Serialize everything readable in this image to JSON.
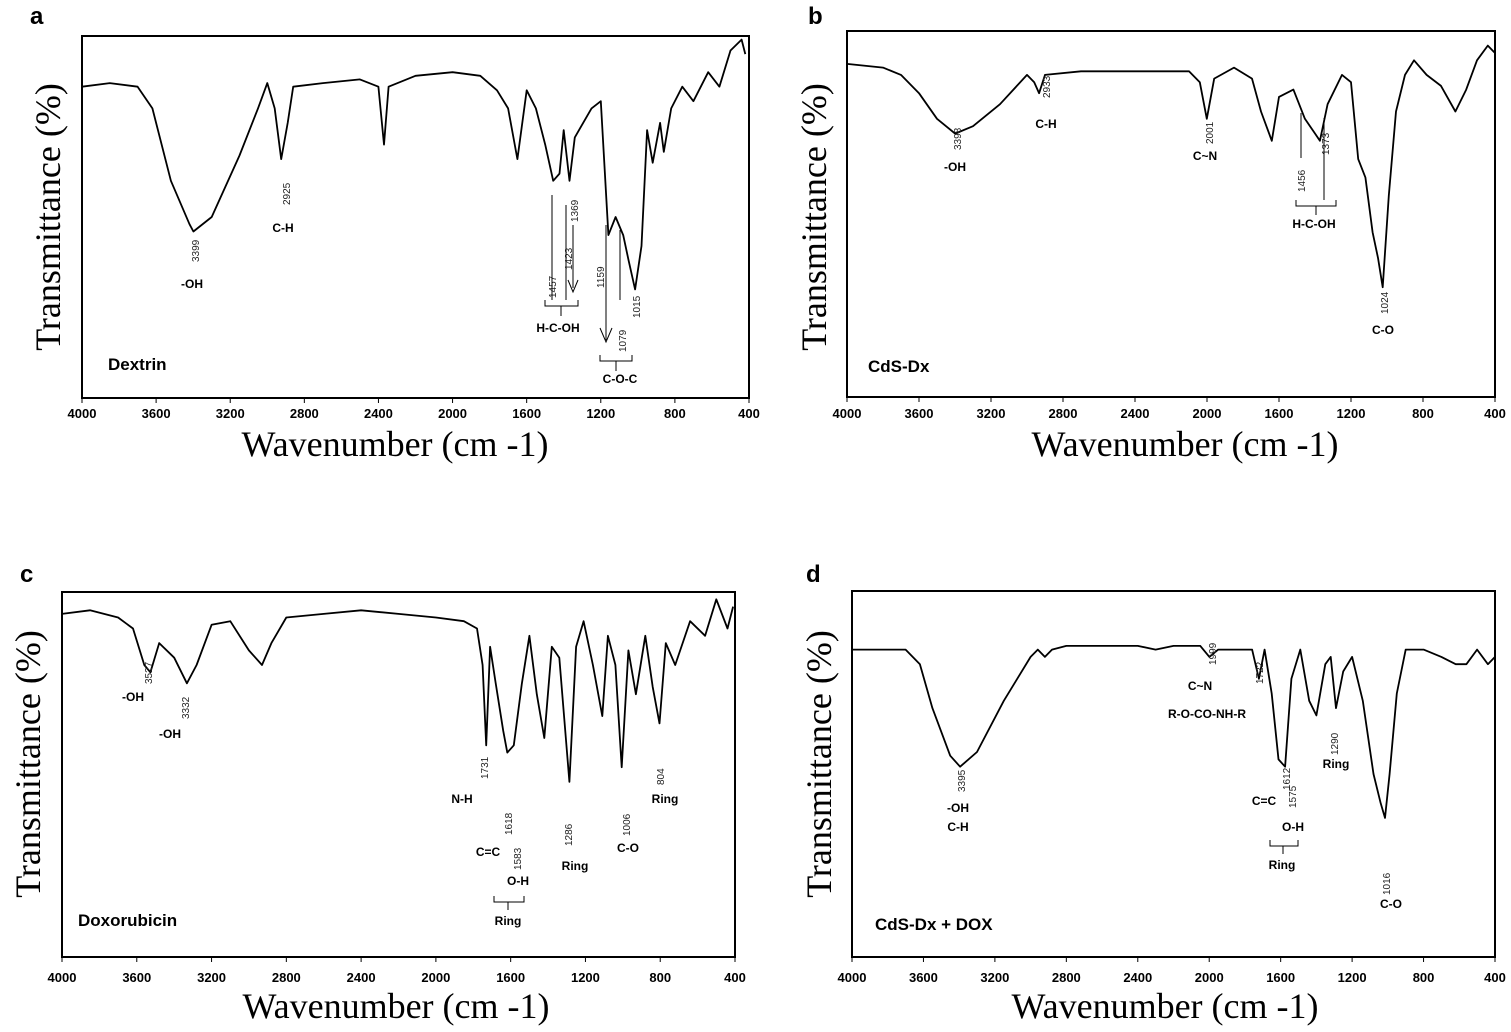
{
  "chart_data": [
    {
      "type": "line",
      "panel": "a",
      "sample_label": "Dextrin",
      "xlabel": "Wavenumber (cm -1)",
      "ylabel": "Transmittance (%)",
      "xlim": [
        4000,
        400
      ],
      "x_ticks": [
        "4000",
        "3600",
        "3200",
        "2800",
        "2400",
        "2000",
        "1600",
        "1200",
        "800",
        "400"
      ],
      "ylim": [
        0,
        1
      ],
      "points": [
        [
          4000,
          0.86
        ],
        [
          3850,
          0.87
        ],
        [
          3700,
          0.86
        ],
        [
          3620,
          0.8
        ],
        [
          3520,
          0.6
        ],
        [
          3420,
          0.48
        ],
        [
          3399,
          0.46
        ],
        [
          3300,
          0.5
        ],
        [
          3150,
          0.67
        ],
        [
          3050,
          0.8
        ],
        [
          3000,
          0.87
        ],
        [
          2960,
          0.8
        ],
        [
          2925,
          0.66
        ],
        [
          2890,
          0.76
        ],
        [
          2860,
          0.86
        ],
        [
          2700,
          0.87
        ],
        [
          2500,
          0.88
        ],
        [
          2400,
          0.86
        ],
        [
          2370,
          0.7
        ],
        [
          2345,
          0.86
        ],
        [
          2200,
          0.89
        ],
        [
          2000,
          0.9
        ],
        [
          1850,
          0.89
        ],
        [
          1760,
          0.85
        ],
        [
          1700,
          0.8
        ],
        [
          1650,
          0.66
        ],
        [
          1600,
          0.85
        ],
        [
          1550,
          0.8
        ],
        [
          1500,
          0.7
        ],
        [
          1457,
          0.6
        ],
        [
          1423,
          0.62
        ],
        [
          1400,
          0.74
        ],
        [
          1369,
          0.6
        ],
        [
          1340,
          0.72
        ],
        [
          1250,
          0.8
        ],
        [
          1200,
          0.82
        ],
        [
          1159,
          0.45
        ],
        [
          1120,
          0.5
        ],
        [
          1079,
          0.45
        ],
        [
          1050,
          0.38
        ],
        [
          1015,
          0.3
        ],
        [
          980,
          0.42
        ],
        [
          950,
          0.74
        ],
        [
          920,
          0.65
        ],
        [
          880,
          0.76
        ],
        [
          860,
          0.68
        ],
        [
          820,
          0.8
        ],
        [
          760,
          0.86
        ],
        [
          700,
          0.82
        ],
        [
          620,
          0.9
        ],
        [
          560,
          0.86
        ],
        [
          500,
          0.96
        ],
        [
          440,
          0.99
        ],
        [
          420,
          0.95
        ]
      ],
      "peaks": [
        {
          "wavenumber": "3399",
          "assignment": "-OH"
        },
        {
          "wavenumber": "2925",
          "assignment": "C-H"
        },
        {
          "wavenumber": "1457",
          "assignment": ""
        },
        {
          "wavenumber": "1423",
          "assignment": ""
        },
        {
          "wavenumber": "1369",
          "assignment": ""
        },
        {
          "wavenumber": "1159",
          "assignment": ""
        },
        {
          "wavenumber": "1079",
          "assignment": ""
        },
        {
          "wavenumber": "1015",
          "assignment": ""
        }
      ],
      "group_labels": [
        "H-C-OH",
        "C-O-C"
      ]
    },
    {
      "type": "line",
      "panel": "b",
      "sample_label": "CdS-Dx",
      "xlabel": "Wavenumber (cm -1)",
      "ylabel": "Transmittance (%)",
      "xlim": [
        4000,
        400
      ],
      "x_ticks": [
        "4000",
        "3600",
        "3200",
        "2800",
        "2400",
        "2000",
        "1600",
        "1200",
        "800",
        "400"
      ],
      "ylim": [
        0,
        1
      ],
      "points": [
        [
          4000,
          0.91
        ],
        [
          3800,
          0.9
        ],
        [
          3700,
          0.88
        ],
        [
          3600,
          0.83
        ],
        [
          3500,
          0.76
        ],
        [
          3400,
          0.72
        ],
        [
          3398,
          0.72
        ],
        [
          3300,
          0.74
        ],
        [
          3150,
          0.8
        ],
        [
          3000,
          0.88
        ],
        [
          2960,
          0.86
        ],
        [
          2933,
          0.83
        ],
        [
          2900,
          0.88
        ],
        [
          2700,
          0.89
        ],
        [
          2500,
          0.89
        ],
        [
          2300,
          0.89
        ],
        [
          2100,
          0.89
        ],
        [
          2040,
          0.86
        ],
        [
          2001,
          0.76
        ],
        [
          1960,
          0.87
        ],
        [
          1850,
          0.9
        ],
        [
          1750,
          0.87
        ],
        [
          1700,
          0.78
        ],
        [
          1640,
          0.7
        ],
        [
          1600,
          0.82
        ],
        [
          1520,
          0.84
        ],
        [
          1456,
          0.76
        ],
        [
          1400,
          0.72
        ],
        [
          1373,
          0.7
        ],
        [
          1330,
          0.8
        ],
        [
          1250,
          0.88
        ],
        [
          1200,
          0.86
        ],
        [
          1160,
          0.65
        ],
        [
          1120,
          0.6
        ],
        [
          1080,
          0.45
        ],
        [
          1050,
          0.38
        ],
        [
          1024,
          0.3
        ],
        [
          990,
          0.55
        ],
        [
          950,
          0.78
        ],
        [
          900,
          0.88
        ],
        [
          850,
          0.92
        ],
        [
          780,
          0.88
        ],
        [
          700,
          0.85
        ],
        [
          620,
          0.78
        ],
        [
          560,
          0.84
        ],
        [
          500,
          0.92
        ],
        [
          440,
          0.96
        ],
        [
          400,
          0.94
        ]
      ],
      "peaks": [
        {
          "wavenumber": "3398",
          "assignment": "-OH"
        },
        {
          "wavenumber": "2933",
          "assignment": "C-H"
        },
        {
          "wavenumber": "2001",
          "assignment": "C~N"
        },
        {
          "wavenumber": "1456",
          "assignment": ""
        },
        {
          "wavenumber": "1373",
          "assignment": ""
        },
        {
          "wavenumber": "1024",
          "assignment": "C-O"
        }
      ],
      "group_labels": [
        "H-C-OH"
      ]
    },
    {
      "type": "line",
      "panel": "c",
      "sample_label": "Doxorubicin",
      "xlabel": "Wavenumber (cm -1)",
      "ylabel": "Transmittance (%)",
      "xlim": [
        4000,
        400
      ],
      "x_ticks": [
        "4000",
        "3600",
        "3200",
        "2800",
        "2400",
        "2000",
        "1600",
        "1200",
        "800",
        "400"
      ],
      "ylim": [
        0,
        1
      ],
      "points": [
        [
          4000,
          0.94
        ],
        [
          3850,
          0.95
        ],
        [
          3700,
          0.93
        ],
        [
          3620,
          0.9
        ],
        [
          3560,
          0.8
        ],
        [
          3527,
          0.78
        ],
        [
          3480,
          0.86
        ],
        [
          3400,
          0.82
        ],
        [
          3332,
          0.75
        ],
        [
          3280,
          0.8
        ],
        [
          3200,
          0.91
        ],
        [
          3100,
          0.92
        ],
        [
          3000,
          0.84
        ],
        [
          2930,
          0.8
        ],
        [
          2880,
          0.86
        ],
        [
          2800,
          0.93
        ],
        [
          2600,
          0.94
        ],
        [
          2400,
          0.95
        ],
        [
          2200,
          0.94
        ],
        [
          2000,
          0.93
        ],
        [
          1850,
          0.92
        ],
        [
          1780,
          0.9
        ],
        [
          1750,
          0.8
        ],
        [
          1731,
          0.58
        ],
        [
          1710,
          0.85
        ],
        [
          1680,
          0.75
        ],
        [
          1640,
          0.62
        ],
        [
          1618,
          0.56
        ],
        [
          1583,
          0.58
        ],
        [
          1540,
          0.75
        ],
        [
          1500,
          0.88
        ],
        [
          1460,
          0.72
        ],
        [
          1420,
          0.6
        ],
        [
          1380,
          0.85
        ],
        [
          1340,
          0.82
        ],
        [
          1286,
          0.48
        ],
        [
          1250,
          0.85
        ],
        [
          1210,
          0.92
        ],
        [
          1160,
          0.8
        ],
        [
          1110,
          0.66
        ],
        [
          1080,
          0.88
        ],
        [
          1040,
          0.8
        ],
        [
          1006,
          0.52
        ],
        [
          970,
          0.84
        ],
        [
          930,
          0.72
        ],
        [
          880,
          0.88
        ],
        [
          840,
          0.74
        ],
        [
          804,
          0.64
        ],
        [
          770,
          0.86
        ],
        [
          720,
          0.8
        ],
        [
          640,
          0.92
        ],
        [
          560,
          0.88
        ],
        [
          500,
          0.98
        ],
        [
          440,
          0.9
        ],
        [
          410,
          0.96
        ]
      ],
      "peaks": [
        {
          "wavenumber": "3527",
          "assignment": "-OH"
        },
        {
          "wavenumber": "3332",
          "assignment": "-OH"
        },
        {
          "wavenumber": "1731",
          "assignment": "N-H"
        },
        {
          "wavenumber": "1618",
          "assignment": "C=C"
        },
        {
          "wavenumber": "1583",
          "assignment": "O-H"
        },
        {
          "wavenumber": "1286",
          "assignment": "Ring"
        },
        {
          "wavenumber": "1006",
          "assignment": "C-O"
        },
        {
          "wavenumber": "804",
          "assignment": "Ring"
        }
      ],
      "group_labels": [
        "Ring"
      ]
    },
    {
      "type": "line",
      "panel": "d",
      "sample_label": "CdS-Dx + DOX",
      "xlabel": "Wavenumber (cm -1)",
      "ylabel": "Transmittance (%)",
      "xlim": [
        4000,
        400
      ],
      "x_ticks": [
        "4000",
        "3600",
        "3200",
        "2800",
        "2400",
        "2000",
        "1600",
        "1200",
        "800",
        "400"
      ],
      "ylim": [
        0,
        1
      ],
      "points": [
        [
          4000,
          0.84
        ],
        [
          3800,
          0.84
        ],
        [
          3700,
          0.84
        ],
        [
          3620,
          0.8
        ],
        [
          3550,
          0.68
        ],
        [
          3450,
          0.55
        ],
        [
          3395,
          0.52
        ],
        [
          3300,
          0.56
        ],
        [
          3150,
          0.7
        ],
        [
          3000,
          0.82
        ],
        [
          2960,
          0.84
        ],
        [
          2920,
          0.82
        ],
        [
          2880,
          0.84
        ],
        [
          2800,
          0.85
        ],
        [
          2600,
          0.85
        ],
        [
          2400,
          0.85
        ],
        [
          2300,
          0.84
        ],
        [
          2200,
          0.85
        ],
        [
          2050,
          0.85
        ],
        [
          1999,
          0.82
        ],
        [
          1950,
          0.84
        ],
        [
          1850,
          0.84
        ],
        [
          1760,
          0.84
        ],
        [
          1722,
          0.76
        ],
        [
          1690,
          0.84
        ],
        [
          1650,
          0.72
        ],
        [
          1612,
          0.54
        ],
        [
          1575,
          0.52
        ],
        [
          1540,
          0.76
        ],
        [
          1490,
          0.84
        ],
        [
          1440,
          0.7
        ],
        [
          1400,
          0.66
        ],
        [
          1350,
          0.8
        ],
        [
          1320,
          0.82
        ],
        [
          1290,
          0.68
        ],
        [
          1250,
          0.78
        ],
        [
          1200,
          0.82
        ],
        [
          1140,
          0.7
        ],
        [
          1080,
          0.5
        ],
        [
          1040,
          0.42
        ],
        [
          1016,
          0.38
        ],
        [
          990,
          0.5
        ],
        [
          950,
          0.72
        ],
        [
          900,
          0.84
        ],
        [
          800,
          0.84
        ],
        [
          700,
          0.82
        ],
        [
          620,
          0.8
        ],
        [
          560,
          0.8
        ],
        [
          500,
          0.84
        ],
        [
          440,
          0.8
        ],
        [
          400,
          0.82
        ]
      ],
      "peaks": [
        {
          "wavenumber": "3395",
          "assignment": "-OH C-H"
        },
        {
          "wavenumber": "1999",
          "assignment": "C~N"
        },
        {
          "wavenumber": "1722",
          "assignment": "R-O-CO-NH-R"
        },
        {
          "wavenumber": "1612",
          "assignment": "C=C"
        },
        {
          "wavenumber": "1575",
          "assignment": "O-H"
        },
        {
          "wavenumber": "1290",
          "assignment": "Ring"
        },
        {
          "wavenumber": "1016",
          "assignment": "C-O"
        }
      ],
      "group_labels": [
        "Ring"
      ]
    }
  ],
  "annotations": {
    "a": {
      "peak_numbers": [
        "3399",
        "2925",
        "1457",
        "1423",
        "1369",
        "1159",
        "1079",
        "1015"
      ],
      "labels": [
        "-OH",
        "C-H",
        "H-C-OH",
        "C-O-C"
      ]
    },
    "b": {
      "peak_numbers": [
        "3398",
        "2933",
        "2001",
        "1456",
        "1373",
        "1024"
      ],
      "labels": [
        "-OH",
        "C-H",
        "C~N",
        "H-C-OH",
        "C-O"
      ]
    },
    "c": {
      "peak_numbers": [
        "3527",
        "3332",
        "1731",
        "1618",
        "1583",
        "1286",
        "1006",
        "804"
      ],
      "labels": [
        "-OH",
        "-OH",
        "N-H",
        "C=C",
        "O-H",
        "Ring",
        "Ring",
        "C-O",
        "Ring"
      ]
    },
    "d": {
      "peak_numbers": [
        "3395",
        "1999",
        "1722",
        "1612",
        "1575",
        "1290",
        "1016"
      ],
      "labels": [
        "-OH",
        "C-H",
        "C~N",
        "R-O-CO-NH-R",
        "C=C",
        "O-H",
        "Ring",
        "Ring",
        "C-O"
      ]
    }
  }
}
